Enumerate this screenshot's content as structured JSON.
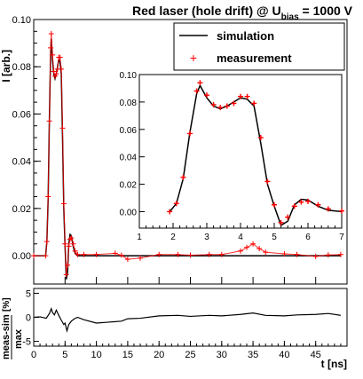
{
  "chart_data": [
    {
      "type": "line",
      "title_main": "Red laser (hole drift) @ U",
      "title_sub": "bias",
      "title_tail": " = 1000 V",
      "ylabel": "I [arb.]",
      "xlim": [
        0,
        50
      ],
      "ylim": [
        -0.012,
        0.1
      ],
      "yticks": [
        0,
        0.02,
        0.04,
        0.06,
        0.08,
        0.1
      ],
      "ytick_labels": [
        "0.00",
        "0.02",
        "0.04",
        "0.06",
        "0.08",
        "0.10"
      ],
      "legend": {
        "placement": "top-right",
        "entries": [
          {
            "label": "simulation",
            "marker": "line",
            "color": "#000000"
          },
          {
            "label": "measurement",
            "marker": "cross",
            "color": "#ff0000"
          }
        ]
      },
      "series": [
        {
          "name": "simulation",
          "color": "#000000",
          "x": [
            0,
            1.9,
            2.1,
            2.3,
            2.5,
            2.7,
            2.8,
            3.0,
            3.2,
            3.4,
            3.6,
            3.8,
            4.0,
            4.2,
            4.4,
            4.6,
            4.8,
            5.0,
            5.2,
            5.4,
            5.6,
            5.8,
            6.0,
            6.3,
            6.6,
            7.0,
            8,
            10,
            13,
            15,
            17,
            20,
            23,
            25,
            28,
            30,
            33,
            35,
            37,
            40,
            42,
            45,
            47,
            49
          ],
          "y": [
            0,
            0,
            0.006,
            0.024,
            0.058,
            0.086,
            0.092,
            0.083,
            0.077,
            0.075,
            0.077,
            0.08,
            0.083,
            0.082,
            0.077,
            0.05,
            0.02,
            0.004,
            -0.01,
            -0.007,
            0.005,
            0.009,
            0.0085,
            0.004,
            0.001,
            0,
            0,
            0,
            0,
            0,
            0,
            0,
            0,
            0,
            0,
            0,
            0,
            0,
            0,
            0,
            0,
            0,
            0,
            0
          ]
        },
        {
          "name": "measurement",
          "color": "#ff0000",
          "x": [
            0,
            1.9,
            2.1,
            2.3,
            2.5,
            2.7,
            2.8,
            3.0,
            3.2,
            3.4,
            3.6,
            3.8,
            4.0,
            4.2,
            4.4,
            4.6,
            4.8,
            5.0,
            5.2,
            5.4,
            5.6,
            5.8,
            6.0,
            6.3,
            6.6,
            7.0,
            8,
            10,
            13,
            14,
            15,
            17,
            20,
            23,
            25,
            28,
            30,
            33,
            34,
            35,
            36,
            37,
            40,
            42,
            45,
            47,
            49
          ],
          "y": [
            0,
            0,
            0.006,
            0.025,
            0.057,
            0.088,
            0.094,
            0.085,
            0.078,
            0.076,
            0.077,
            0.079,
            0.084,
            0.084,
            0.079,
            0.054,
            0.022,
            0.005,
            -0.008,
            -0.004,
            0.004,
            0.007,
            0.0075,
            0.005,
            0.002,
            0.0005,
            0.0005,
            0.0005,
            0.001,
            0.0002,
            -0.0015,
            -0.001,
            0.0005,
            0.0005,
            0.0002,
            0.0005,
            0.0005,
            0.002,
            0.0035,
            0.005,
            0.003,
            0.0015,
            0.0008,
            0.0005,
            -0.0003,
            0.0003,
            0.0005
          ]
        }
      ]
    },
    {
      "type": "line",
      "inset": true,
      "xlim": [
        1,
        7
      ],
      "ylim": [
        -0.012,
        0.1
      ],
      "xticks": [
        1,
        2,
        3,
        4,
        5,
        6,
        7
      ],
      "xtick_labels": [
        "1",
        "2",
        "3",
        "4",
        "5",
        "6",
        "7"
      ],
      "yticks": [
        0,
        0.02,
        0.04,
        0.06,
        0.08,
        0.1
      ],
      "ytick_labels": [
        "0.00",
        "0.02",
        "0.04",
        "0.06",
        "0.08",
        "0.10"
      ],
      "series_ref": [
        "simulation",
        "measurement"
      ]
    },
    {
      "type": "line",
      "ylabel_top": "meas-sim",
      "ylabel_bottom": "max",
      "ylabel_unit": "[%]",
      "xlabel": "t [ns]",
      "xlim": [
        0,
        50
      ],
      "ylim": [
        -6,
        6
      ],
      "yticks": [
        -5,
        0,
        5
      ],
      "ytick_labels": [
        "-5",
        "0",
        "5"
      ],
      "xticks": [
        0,
        5,
        10,
        15,
        20,
        25,
        30,
        35,
        40,
        45
      ],
      "xtick_labels": [
        "0",
        "5",
        "10",
        "15",
        "20",
        "25",
        "30",
        "35",
        "40",
        "45"
      ],
      "series": [
        {
          "color": "#000000",
          "x": [
            0,
            1,
            2,
            2.5,
            2.8,
            3.0,
            3.3,
            3.6,
            4.0,
            4.4,
            4.8,
            5.0,
            5.3,
            5.6,
            6,
            6.5,
            7,
            8,
            10,
            12,
            14,
            15,
            17,
            20,
            23,
            25,
            28,
            30,
            33,
            35,
            37,
            40,
            42,
            45,
            47,
            49
          ],
          "y": [
            0,
            0.1,
            -0.2,
            0.8,
            1.8,
            1.0,
            0.5,
            1.5,
            0.4,
            -0.6,
            -1.5,
            -1.2,
            -2.8,
            -1.5,
            -0.8,
            -0.3,
            0,
            -0.5,
            -1.2,
            -1.0,
            -0.8,
            -0.3,
            -0.2,
            0.3,
            0.4,
            0.2,
            0.4,
            0.3,
            0.6,
            0.9,
            0.4,
            0.3,
            0.5,
            0.6,
            0.8,
            0.4
          ]
        }
      ]
    }
  ]
}
